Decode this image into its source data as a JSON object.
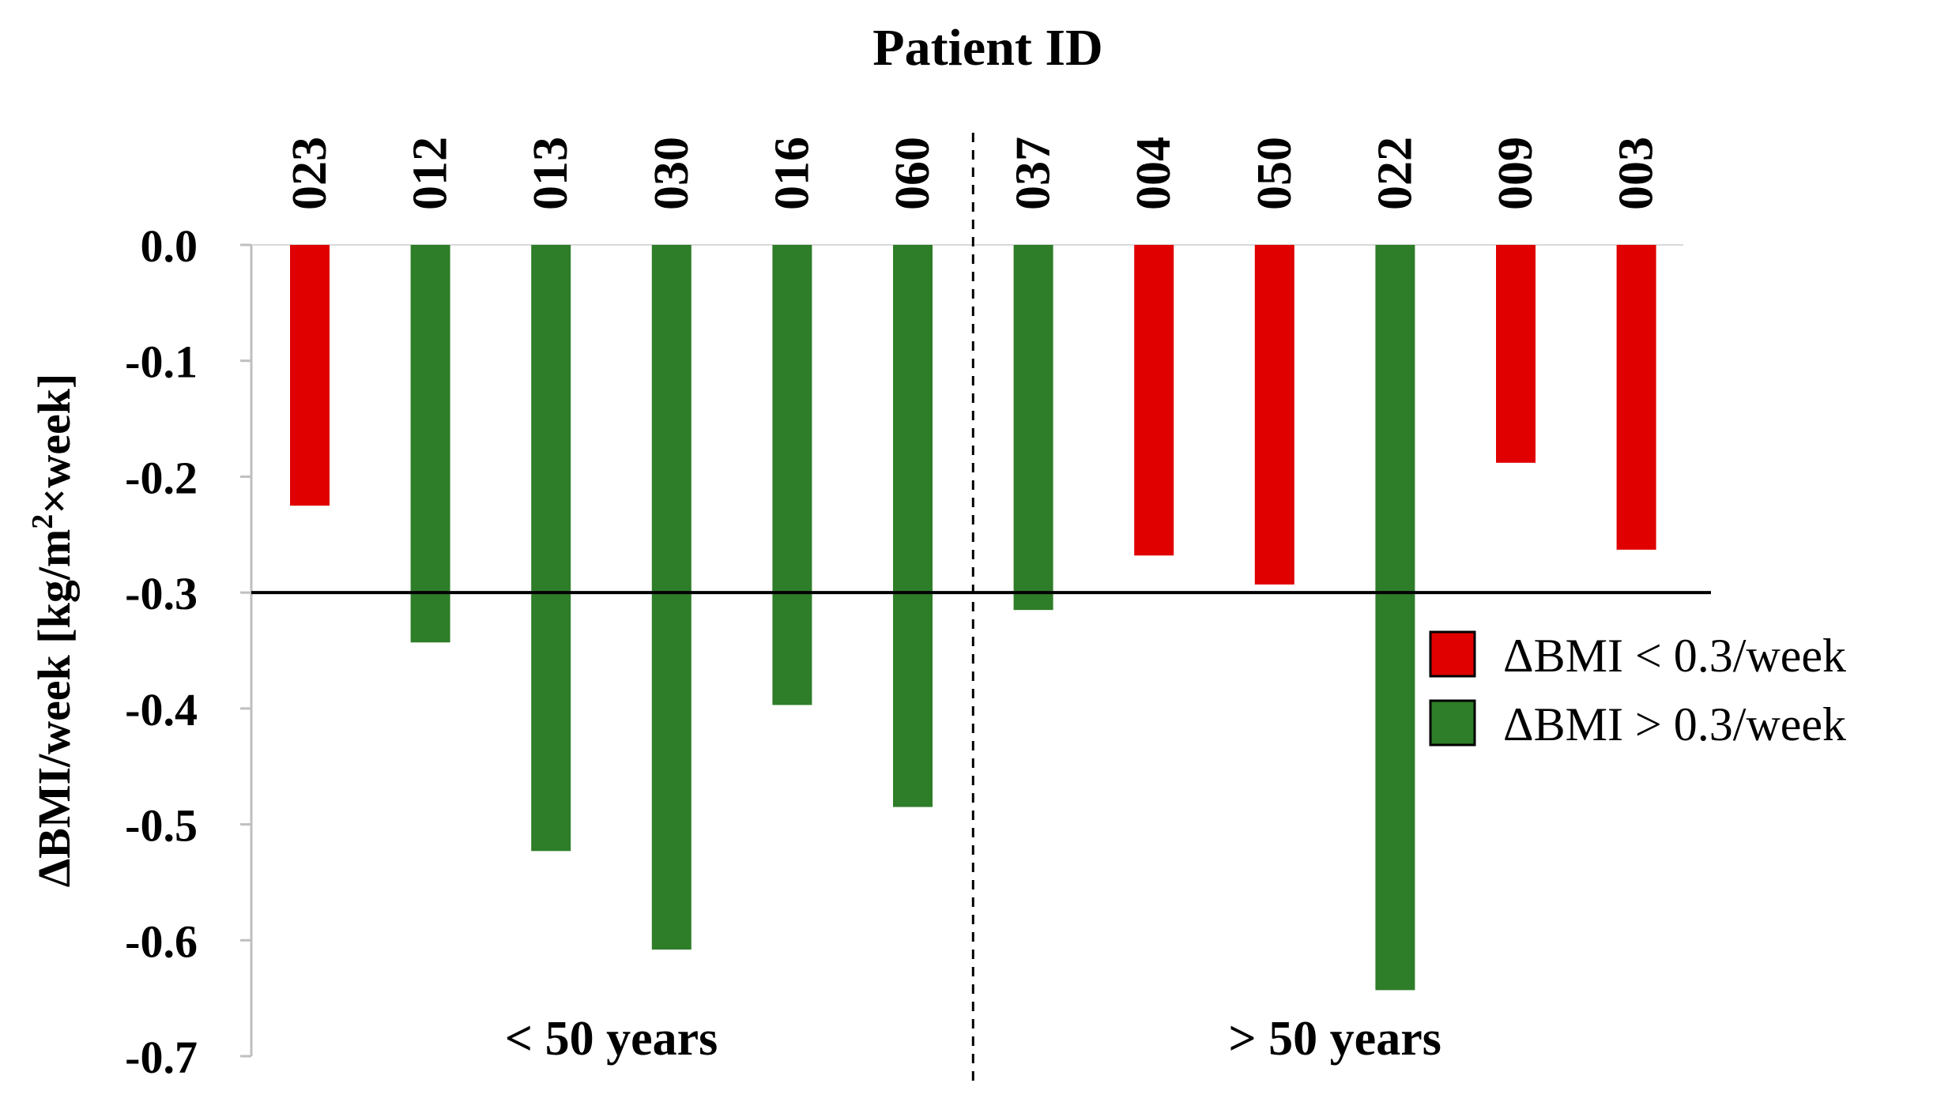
{
  "chart_data": {
    "type": "bar",
    "title": "Patient ID",
    "ylabel": "ΔBMI/week [kg/m²×week]",
    "ylabel_parts": {
      "base": "ΔBMI/week [kg/m",
      "sup": "2",
      "tail": "×week]"
    },
    "categories": [
      "023",
      "012",
      "013",
      "030",
      "016",
      "060",
      "037",
      "004",
      "050",
      "022",
      "009",
      "003"
    ],
    "values": [
      -0.225,
      -0.343,
      -0.523,
      -0.608,
      -0.397,
      -0.485,
      -0.315,
      -0.268,
      -0.293,
      -0.643,
      -0.188,
      -0.263
    ],
    "classes": [
      "lt",
      "gt",
      "gt",
      "gt",
      "gt",
      "gt",
      "gt",
      "lt",
      "lt",
      "gt",
      "lt",
      "lt"
    ],
    "ylim": [
      -0.7,
      0.0
    ],
    "yticks": [
      "0.0",
      "-0.1",
      "-0.2",
      "-0.3",
      "-0.4",
      "-0.5",
      "-0.6",
      "-0.7"
    ],
    "reference_line": -0.3,
    "groups": [
      {
        "label": "< 50 years"
      },
      {
        "label": "> 50 years"
      }
    ],
    "legend": [
      {
        "key": "lt",
        "label": "ΔBMI < 0.3/week",
        "color": "#e00000"
      },
      {
        "key": "gt",
        "label": "ΔBMI > 0.3/week",
        "color": "#2e7d28"
      }
    ],
    "grid": false,
    "legend_position": "right"
  }
}
